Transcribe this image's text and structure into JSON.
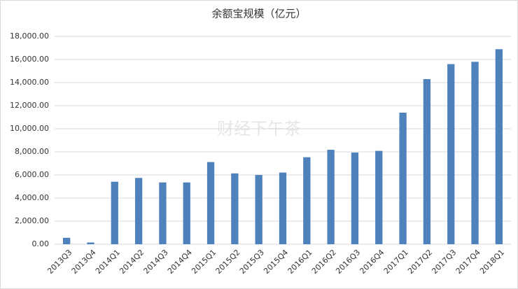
{
  "chart_data": {
    "type": "bar",
    "title": "余额宝规模（亿元）",
    "watermark": "财经下午茶",
    "categories": [
      "2013Q3",
      "2013Q4",
      "2014Q1",
      "2014Q2",
      "2014Q3",
      "2014Q4",
      "2015Q1",
      "2015Q2",
      "2015Q3",
      "2015Q4",
      "2016Q1",
      "2016Q2",
      "2016Q3",
      "2016Q4",
      "2017Q1",
      "2017Q2",
      "2017Q3",
      "2017Q4",
      "2018Q1"
    ],
    "values": [
      557,
      150,
      5413,
      5742,
      5349,
      5350,
      7117,
      6134,
      5996,
      6207,
      7536,
      8180,
      7939,
      8083,
      11396,
      14300,
      15600,
      15798,
      16891
    ],
    "color": "#4f81bd",
    "ylim": [
      0,
      18000
    ],
    "yticks": [
      {
        "value": 0,
        "label": "0.00"
      },
      {
        "value": 2000,
        "label": "2,000.00"
      },
      {
        "value": 4000,
        "label": "4,000.00"
      },
      {
        "value": 6000,
        "label": "6,000.00"
      },
      {
        "value": 8000,
        "label": "8,000.00"
      },
      {
        "value": 10000,
        "label": "10,000.00"
      },
      {
        "value": 12000,
        "label": "12,000.00"
      },
      {
        "value": 14000,
        "label": "14,000.00"
      },
      {
        "value": 16000,
        "label": "16,000.00"
      },
      {
        "value": 18000,
        "label": "18,000.00"
      }
    ],
    "grid": true
  }
}
